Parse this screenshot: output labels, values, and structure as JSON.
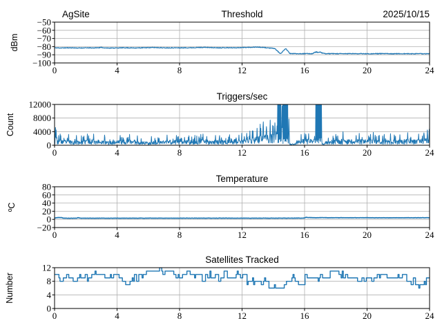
{
  "figure": {
    "background": "#ffffff",
    "line_color": "#1f77b4",
    "grid_color": "#b0b0b0",
    "axis_color": "#000000"
  },
  "chart_data": [
    {
      "id": "threshold",
      "type": "line",
      "title": "Threshold",
      "title_left": "AgSite",
      "title_right": "2025/10/15",
      "ylabel": "dBm",
      "xlabel": "",
      "grid": true,
      "legend": false,
      "xlim": [
        0,
        24
      ],
      "ylim": [
        -100,
        -50
      ],
      "xticks": [
        0,
        4,
        8,
        12,
        16,
        20,
        24
      ],
      "xticklabels": [
        "0",
        "4",
        "8",
        "12",
        "16",
        "20",
        "24"
      ],
      "yticks": [
        -100,
        -90,
        -80,
        -70,
        -60,
        -50
      ],
      "yticklabels": [
        "−100",
        "−90",
        "−80",
        "−70",
        "−60",
        "−50"
      ],
      "series": {
        "name": "noise-floor-dbm",
        "noise": 0.45,
        "seed": 11,
        "step": 0.02,
        "anchors": [
          [
            0,
            -81.5
          ],
          [
            0.5,
            -81.6
          ],
          [
            1,
            -81.4
          ],
          [
            1.5,
            -81.7
          ],
          [
            2,
            -81.5
          ],
          [
            2.5,
            -81.6
          ],
          [
            3,
            -81.1
          ],
          [
            3.3,
            -81.7
          ],
          [
            4,
            -81.6
          ],
          [
            4.5,
            -81.4
          ],
          [
            5,
            -81.6
          ],
          [
            5.5,
            -81.5
          ],
          [
            6,
            -81.2
          ],
          [
            6.5,
            -81.1
          ],
          [
            7,
            -81.5
          ],
          [
            7.5,
            -81.4
          ],
          [
            8,
            -81.5
          ],
          [
            8.5,
            -81.4
          ],
          [
            9,
            -81.2
          ],
          [
            9.6,
            -80.9
          ],
          [
            10,
            -81.2
          ],
          [
            10.5,
            -81.4
          ],
          [
            11,
            -81.3
          ],
          [
            11.5,
            -81.4
          ],
          [
            12,
            -81.1
          ],
          [
            12.5,
            -80.9
          ],
          [
            12.9,
            -80.5
          ],
          [
            13.2,
            -80.9
          ],
          [
            13.6,
            -81.4
          ],
          [
            13.9,
            -82.0
          ],
          [
            14.1,
            -82.4
          ],
          [
            14.45,
            -88.8
          ],
          [
            14.8,
            -82.2
          ],
          [
            15.05,
            -88.5
          ],
          [
            15.5,
            -88.6
          ],
          [
            16,
            -88.6
          ],
          [
            16.5,
            -88.6
          ],
          [
            16.65,
            -87.0
          ],
          [
            16.78,
            -86.6
          ],
          [
            16.88,
            -87.3
          ],
          [
            16.98,
            -86.7
          ],
          [
            17.1,
            -87.6
          ],
          [
            17.3,
            -88.6
          ],
          [
            18,
            -88.7
          ],
          [
            19,
            -88.6
          ],
          [
            20,
            -88.7
          ],
          [
            21,
            -88.6
          ],
          [
            22,
            -88.7
          ],
          [
            23,
            -88.7
          ],
          [
            24,
            -88.7
          ]
        ]
      }
    },
    {
      "id": "triggers",
      "type": "line",
      "title": "Triggers/sec",
      "ylabel": "Count",
      "xlabel": "",
      "grid": true,
      "legend": false,
      "xlim": [
        0,
        24
      ],
      "ylim": [
        0,
        12000
      ],
      "xticks": [
        0,
        4,
        8,
        12,
        16,
        20,
        24
      ],
      "xticklabels": [
        "0",
        "4",
        "8",
        "12",
        "16",
        "20",
        "24"
      ],
      "yticks": [
        0,
        4000,
        8000,
        12000
      ],
      "yticklabels": [
        "0",
        "4000",
        "8000",
        "12000"
      ],
      "series": {
        "name": "triggers-per-sec",
        "seed": 23,
        "step": 0.02,
        "baseline_anchors": [
          [
            0,
            1500
          ],
          [
            0.5,
            1400
          ],
          [
            1,
            1300
          ],
          [
            1.5,
            1200
          ],
          [
            2,
            1500
          ],
          [
            2.5,
            1600
          ],
          [
            3,
            1300
          ],
          [
            3.5,
            1000
          ],
          [
            4,
            1300
          ],
          [
            4.5,
            1500
          ],
          [
            5,
            1500
          ],
          [
            5.5,
            1100
          ],
          [
            6,
            900
          ],
          [
            6.5,
            1000
          ],
          [
            7,
            1300
          ],
          [
            7.5,
            1400
          ],
          [
            8,
            1300
          ],
          [
            8.5,
            1300
          ],
          [
            9,
            1400
          ],
          [
            9.5,
            1600
          ],
          [
            10,
            1400
          ],
          [
            10.5,
            1300
          ],
          [
            11,
            1500
          ],
          [
            11.5,
            1600
          ],
          [
            12,
            1700
          ],
          [
            12.5,
            2000
          ],
          [
            13,
            2400
          ],
          [
            13.5,
            2800
          ],
          [
            14,
            3000
          ],
          [
            14.2,
            3200
          ],
          [
            15.1,
            600
          ],
          [
            15.5,
            1300
          ],
          [
            16,
            1700
          ],
          [
            16.5,
            1600
          ],
          [
            17.3,
            1200
          ],
          [
            18,
            1500
          ],
          [
            18.5,
            1600
          ],
          [
            19,
            1500
          ],
          [
            19.5,
            1600
          ],
          [
            20,
            1500
          ],
          [
            20.5,
            1600
          ],
          [
            21,
            1400
          ],
          [
            21.5,
            1500
          ],
          [
            22,
            1400
          ],
          [
            22.5,
            1600
          ],
          [
            23,
            1500
          ],
          [
            23.5,
            1700
          ],
          [
            24,
            2000
          ]
        ],
        "spikes": [
          [
            0.05,
            5200
          ],
          [
            0.1,
            4500
          ],
          [
            0.35,
            3300
          ],
          [
            0.9,
            3200
          ],
          [
            1.4,
            2900
          ],
          [
            2.1,
            3300
          ],
          [
            2.5,
            3300
          ],
          [
            3.2,
            3000
          ],
          [
            4.2,
            2900
          ],
          [
            4.8,
            3200
          ],
          [
            5.3,
            2800
          ],
          [
            6.2,
            2600
          ],
          [
            7.2,
            3000
          ],
          [
            7.8,
            2900
          ],
          [
            8.6,
            2800
          ],
          [
            9.5,
            3300
          ],
          [
            10.3,
            2900
          ],
          [
            11.2,
            3100
          ],
          [
            11.8,
            3000
          ],
          [
            12.3,
            3500
          ],
          [
            12.7,
            4200
          ],
          [
            12.95,
            5000
          ],
          [
            13.15,
            6200
          ],
          [
            13.35,
            6900
          ],
          [
            13.55,
            5500
          ],
          [
            13.8,
            7400
          ],
          [
            14.0,
            5600
          ],
          [
            14.1,
            6600
          ],
          [
            14.55,
            11500
          ],
          [
            15.0,
            7700
          ],
          [
            16.25,
            3400
          ],
          [
            18.0,
            3200
          ],
          [
            18.45,
            4000
          ],
          [
            19.5,
            3500
          ],
          [
            20.4,
            3800
          ],
          [
            21.1,
            3200
          ],
          [
            21.5,
            3400
          ],
          [
            22.1,
            3100
          ],
          [
            22.6,
            3700
          ],
          [
            23.3,
            3300
          ],
          [
            23.85,
            4500
          ],
          [
            23.98,
            4700
          ]
        ],
        "saturated_bands": [
          [
            14.28,
            14.5
          ],
          [
            14.6,
            14.92
          ],
          [
            16.72,
            17.1
          ]
        ],
        "quiet_bands": [
          [
            15.05,
            15.45,
            400
          ],
          [
            17.12,
            17.3,
            400
          ]
        ]
      }
    },
    {
      "id": "temperature",
      "type": "line",
      "title": "Temperature",
      "ylabel": "ºC",
      "xlabel": "",
      "grid": true,
      "legend": false,
      "xlim": [
        0,
        24
      ],
      "ylim": [
        -20,
        80
      ],
      "xticks": [
        0,
        4,
        8,
        12,
        16,
        20,
        24
      ],
      "xticklabels": [
        "0",
        "4",
        "8",
        "12",
        "16",
        "20",
        "24"
      ],
      "yticks": [
        -20,
        0,
        20,
        40,
        60,
        80
      ],
      "yticklabels": [
        "−20",
        "0",
        "20",
        "40",
        "60",
        "80"
      ],
      "series": {
        "name": "temperature-c",
        "noise": 0.35,
        "seed": 5,
        "step": 0.04,
        "anchors": [
          [
            0,
            2.3
          ],
          [
            0.08,
            4.0
          ],
          [
            0.2,
            4.5
          ],
          [
            0.45,
            4.3
          ],
          [
            0.6,
            2.9
          ],
          [
            1.4,
            2.9
          ],
          [
            1.5,
            4.2
          ],
          [
            1.65,
            2.9
          ],
          [
            3,
            2.9
          ],
          [
            6,
            3.0
          ],
          [
            9,
            3.0
          ],
          [
            12,
            3.0
          ],
          [
            15,
            3.0
          ],
          [
            15.95,
            3.2
          ],
          [
            16.1,
            5.0
          ],
          [
            16.4,
            4.3
          ],
          [
            18,
            4.1
          ],
          [
            20,
            4.0
          ],
          [
            22,
            4.0
          ],
          [
            24,
            4.1
          ]
        ]
      }
    },
    {
      "id": "satellites",
      "type": "step",
      "title": "Satellites Tracked",
      "ylabel": "Number",
      "xlabel": "",
      "grid": true,
      "legend": false,
      "xlim": [
        0,
        24
      ],
      "ylim": [
        0,
        12
      ],
      "xticks": [
        0,
        4,
        8,
        12,
        16,
        20,
        24
      ],
      "xticklabels": [
        "0",
        "4",
        "8",
        "12",
        "16",
        "20",
        "24"
      ],
      "yticks": [
        0,
        4,
        8,
        12
      ],
      "yticklabels": [
        "0",
        "4",
        "8",
        "12"
      ],
      "series": {
        "name": "satellites-tracked",
        "seed": 41,
        "step": 0.07,
        "jitter": 1.1,
        "hold_probability": 0.5,
        "min": 5,
        "max": 12,
        "integer": true,
        "anchors": [
          [
            0,
            9.5
          ],
          [
            0.3,
            8.5
          ],
          [
            0.6,
            9.5
          ],
          [
            1,
            9
          ],
          [
            1.5,
            9.5
          ],
          [
            2,
            9
          ],
          [
            2.4,
            10.5
          ],
          [
            2.8,
            10
          ],
          [
            3.2,
            9.5
          ],
          [
            3.6,
            9
          ],
          [
            4,
            9
          ],
          [
            4.4,
            8
          ],
          [
            4.8,
            7.5
          ],
          [
            5.2,
            9
          ],
          [
            5.6,
            10
          ],
          [
            6,
            11
          ],
          [
            6.3,
            11.5
          ],
          [
            6.6,
            10.5
          ],
          [
            7,
            11.5
          ],
          [
            7.4,
            10.5
          ],
          [
            7.8,
            10
          ],
          [
            8.2,
            10
          ],
          [
            8.6,
            10
          ],
          [
            9,
            9.5
          ],
          [
            9.4,
            9
          ],
          [
            9.8,
            10
          ],
          [
            10.2,
            9
          ],
          [
            10.6,
            9.5
          ],
          [
            11,
            10
          ],
          [
            11.4,
            10
          ],
          [
            11.8,
            9.5
          ],
          [
            12,
            9
          ],
          [
            12.3,
            8
          ],
          [
            12.7,
            8.5
          ],
          [
            13,
            8.5
          ],
          [
            13.3,
            8
          ],
          [
            13.7,
            7
          ],
          [
            14,
            6.5
          ],
          [
            14.4,
            6
          ],
          [
            14.7,
            6.5
          ],
          [
            15,
            8.5
          ],
          [
            15.2,
            9.5
          ],
          [
            15.6,
            8
          ],
          [
            16,
            8.5
          ],
          [
            16.4,
            8.5
          ],
          [
            16.8,
            9
          ],
          [
            17.2,
            9.5
          ],
          [
            17.6,
            10.5
          ],
          [
            18,
            10
          ],
          [
            18.3,
            10.5
          ],
          [
            18.7,
            9.5
          ],
          [
            19,
            9
          ],
          [
            19.4,
            8.5
          ],
          [
            19.8,
            8
          ],
          [
            20.3,
            8
          ],
          [
            20.7,
            9.5
          ],
          [
            21,
            10
          ],
          [
            21.4,
            9.5
          ],
          [
            21.8,
            9
          ],
          [
            22.2,
            9
          ],
          [
            22.6,
            8.5
          ],
          [
            23,
            8
          ],
          [
            23.3,
            5.5
          ],
          [
            23.6,
            7
          ],
          [
            23.8,
            8
          ],
          [
            24,
            7.5
          ]
        ]
      }
    }
  ]
}
